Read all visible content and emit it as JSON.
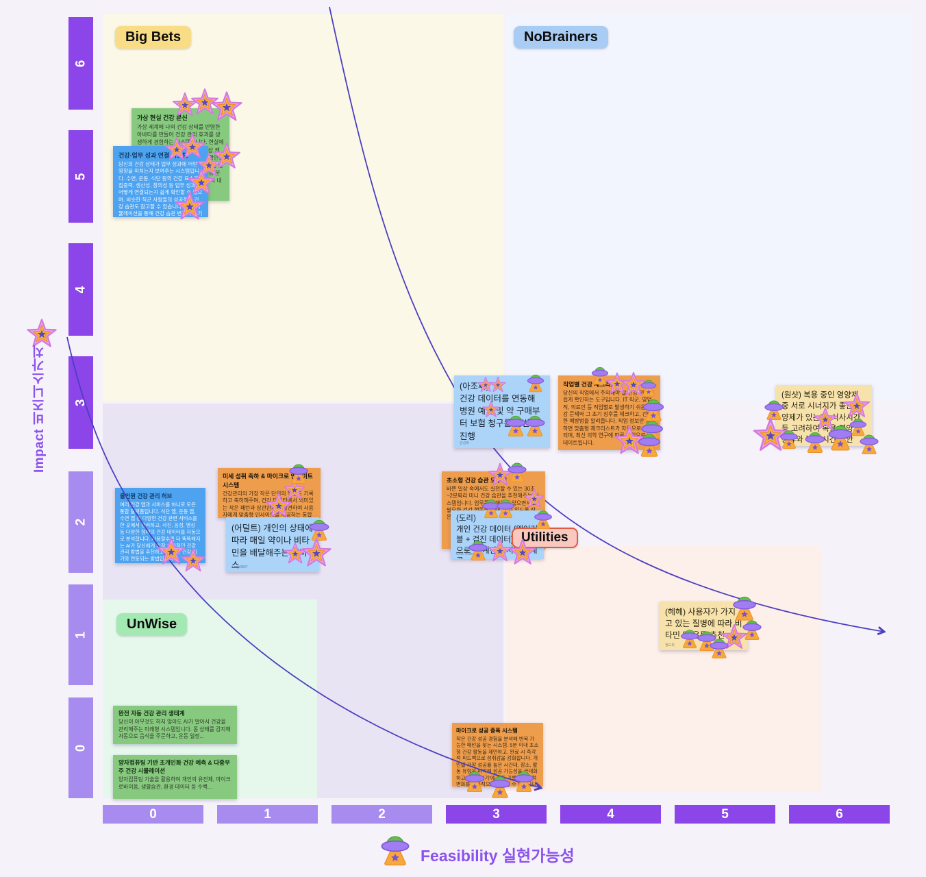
{
  "board": {
    "y_axis": {
      "label": "Impact 비즈니스가치",
      "ticks": [
        "6",
        "5",
        "4",
        "3",
        "2",
        "1",
        "0"
      ]
    },
    "x_axis": {
      "label": "Feasibility 실현가능성",
      "ticks": [
        "0",
        "1",
        "2",
        "3",
        "4",
        "5",
        "6"
      ]
    },
    "quadrant_labels": {
      "big_bets": "Big Bets",
      "nobrainers": "NoBrainers",
      "unwise": "UnWise",
      "utilities": "Utilities"
    }
  },
  "notes": {
    "vr_avatar": {
      "title": "가상 현실 건강 분신",
      "body": "가상 세계에 나의 건강 상태를 반영한 아바타를 만들어 건강 관리 효과를 생생하게 경험하는 시스템입니다. 현실에서의 운동, 식사, 수면이 즉시 가상 캐릭터에 반영되어 변화를 눈으로 확인할 수 있고, 가상 캐릭터가 건강 목표를 달성하면 보상을 받는 방식으로 건강 분신과 함께 성장해 나갑니다. 미래의 내 모습이 즉...",
      "votes": {
        "stars": 9
      }
    },
    "work_link": {
      "title": "건강-업무 성과 연결 시스템",
      "body": "당신의 건강 상태가 업무 성과에 어떤 영향을 미치는지 보여주는 시스템입니다. 수면, 운동, 식단 등의 건강 요소가 집중력, 생산성, 창의성 등 업무 성과와 어떻게 연결되는지 쉽게 확인할 수 있으며, 비슷한 직군 사람들의 성공적인 건강 습관도 참고할 수 있습니다. 미래 시뮬레이션을 통해 건강 습관 변화가 장기적으로 미치게 될 영향도 예측해 보여줍니다."
    },
    "allinone": {
      "title": "올인원 건강 관리 허브",
      "body": "여러 건강 앱과 서비스를 하나로 모은 통합 플랫폼입니다. 식단 앱, 운동 앱, 수면 앱 등 다양한 건강 관련 서비스를 한 곳에서 관리하고, 사진, 음성, 영상 등 다양한 형태의 건강 데이터를 자동으로 분석합니다. 사용할수록 더 똑똑해지는 AI가 당신에게 가장 효과적인 건강 관리 방법을 추천하고, 다양한 건강 기기와 연동되는 방법입니다.",
      "votes": {
        "stars": 2
      }
    },
    "micro_insight": {
      "title": "미세 성취 축하 & 마이크로 인사이트 시스템",
      "body": "건강관리의 가장 작은 단위의 행동도 기록하고 축하해주며, 건강 데이터에서 의미있는 작은 패턴과 상관관계를 발견하여 사용자에게 맞춤형 인사이트를 제공하는 통합 시스템. 예를 들어 '오늘 계단 3층 오르기' 같은 작은 목표를 달성하...",
      "votes": {
        "stars": 2,
        "ufos": 1
      }
    },
    "adult_delivery": {
      "text": "(어덜트) 개인의 상태에 따라 매일 약이나 비타민을 배달해주는 서비스",
      "author": "s.mgr0807",
      "votes": {
        "stars": 2,
        "ufos": 1
      }
    },
    "ajossi": {
      "text": "(아조씨)\n건강 데이터를 연동해 병원 예약 및 약 구매부터 보험 청구를 한번에 진행",
      "author": "김성희",
      "votes": {
        "stars": 3,
        "ufos": 3
      }
    },
    "job_checklist": {
      "title": "직업별 건강 체크리스트",
      "body": "당신의 직업에서 주의해야 할 건강 위험을 쉽게 확인하는 도구입니다. IT 직군, 영업직, 의료인 등 직업별로 발생하기 쉬운 건강 문제와 그 초기 징후를 체크하고, 간단한 예방법을 알려줍니다. 직업 정보만 입력하면 맞춤형 체크리스트가 자동으로 생성되며, 최신 의학 연구에 따른 지침으로 업데이트됩니다.",
      "votes": {
        "stars": 3,
        "ufos": 5
      }
    },
    "oneshot": {
      "text": "(원샷) 복용 중인 영양제 중 서로 시너지가 좋은 영양제가 있는지, 식사시간 등 고려하여 복용 영양제 종류와 복용 시간 제안",
      "votes": {
        "stars": 3,
        "ufos": 6
      }
    },
    "micro_habit": {
      "title": "초소형 건강 습관 도우미",
      "body": "바쁜 일상 속에서도 실천할 수 있는 30초~2분짜리 미니 건강 습관을 추천해주는 시스템입니다. 업무를 방해하지 않으면서도 필요한 건강 행동을 제때 할 수 있도록 작은 단위로 알려주는 도우미 시스템...",
      "votes": {
        "stars": 2,
        "ufos": 4
      }
    },
    "dori": {
      "text": "(도리)\n개인 건강 데이터 (웨어러블 + 검진 데이터)를 기반으로 한 계산기 서비스 제공",
      "author": "Uma Thurman",
      "votes": {
        "stars": 2,
        "ufos": 1
      }
    },
    "hehe": {
      "text": "(헤헤) 사용자가 가지고 있는 질병에 따라 비타민 및 운동 추천",
      "author": "정도희",
      "votes": {
        "stars": 1,
        "ufos": 5
      }
    },
    "auto_eco": {
      "title": "완전 자동 건강 관리 생태계",
      "body": "당신이 아무것도 하지 않아도 AI가 알아서 건강을 관리해주는 미래형 시스템입니다. 몸 상태를 감지해 자동으로 음식을 주문하고, 운동 일정..."
    },
    "quantum": {
      "title": "양자컴퓨팅 기반 초개인화 건강 예측 & 다중우주 건강 시뮬레이션",
      "body": "양자컴퓨팅 기술을 활용하여 개인의 유전체, 마이크로바이옴, 생활습관, 환경 데이터 등 수백..."
    },
    "micro_success": {
      "title": "마이크로 성공 증폭 시스템",
      "body": "작은 건강 성공 경험을 분석해 반복 가능한 패턴을 찾는 시스템. 5분 이내 초소형 건강 활동을 제안하고, 완료 시 즉각적 피드백으로 성취감을 강화합니다. 개인별 가장 성공률 높은 시간대, 장소, 활동 유형을 파악해 성공 가능성을 극대화하고, '성공 일기'에 자동 기록해 긍정적 변화를 지속적으로 확인할 수 있습니다.",
      "votes": {
        "ufos": 3
      }
    }
  },
  "icons": {
    "star_stamp": "star vote stamp",
    "ufo_stamp": "ufo vote stamp"
  },
  "colors": {
    "accent_purple": "#8b45e8",
    "axis_light": "#a78bee",
    "curve": "#4b3fc0",
    "sticky_green": "#87c97f",
    "sticky_blue": "#4da3ef",
    "sticky_lightblue": "#abd4f8",
    "sticky_orange": "#ee9d4d",
    "sticky_yellow": "#f7e2ab",
    "quad_big_bets": "#fcf8e7",
    "quad_nobrainers": "#f2f5fd",
    "quad_unwise": "#e6f8ec",
    "quad_utilities": "#fdf0ea"
  }
}
